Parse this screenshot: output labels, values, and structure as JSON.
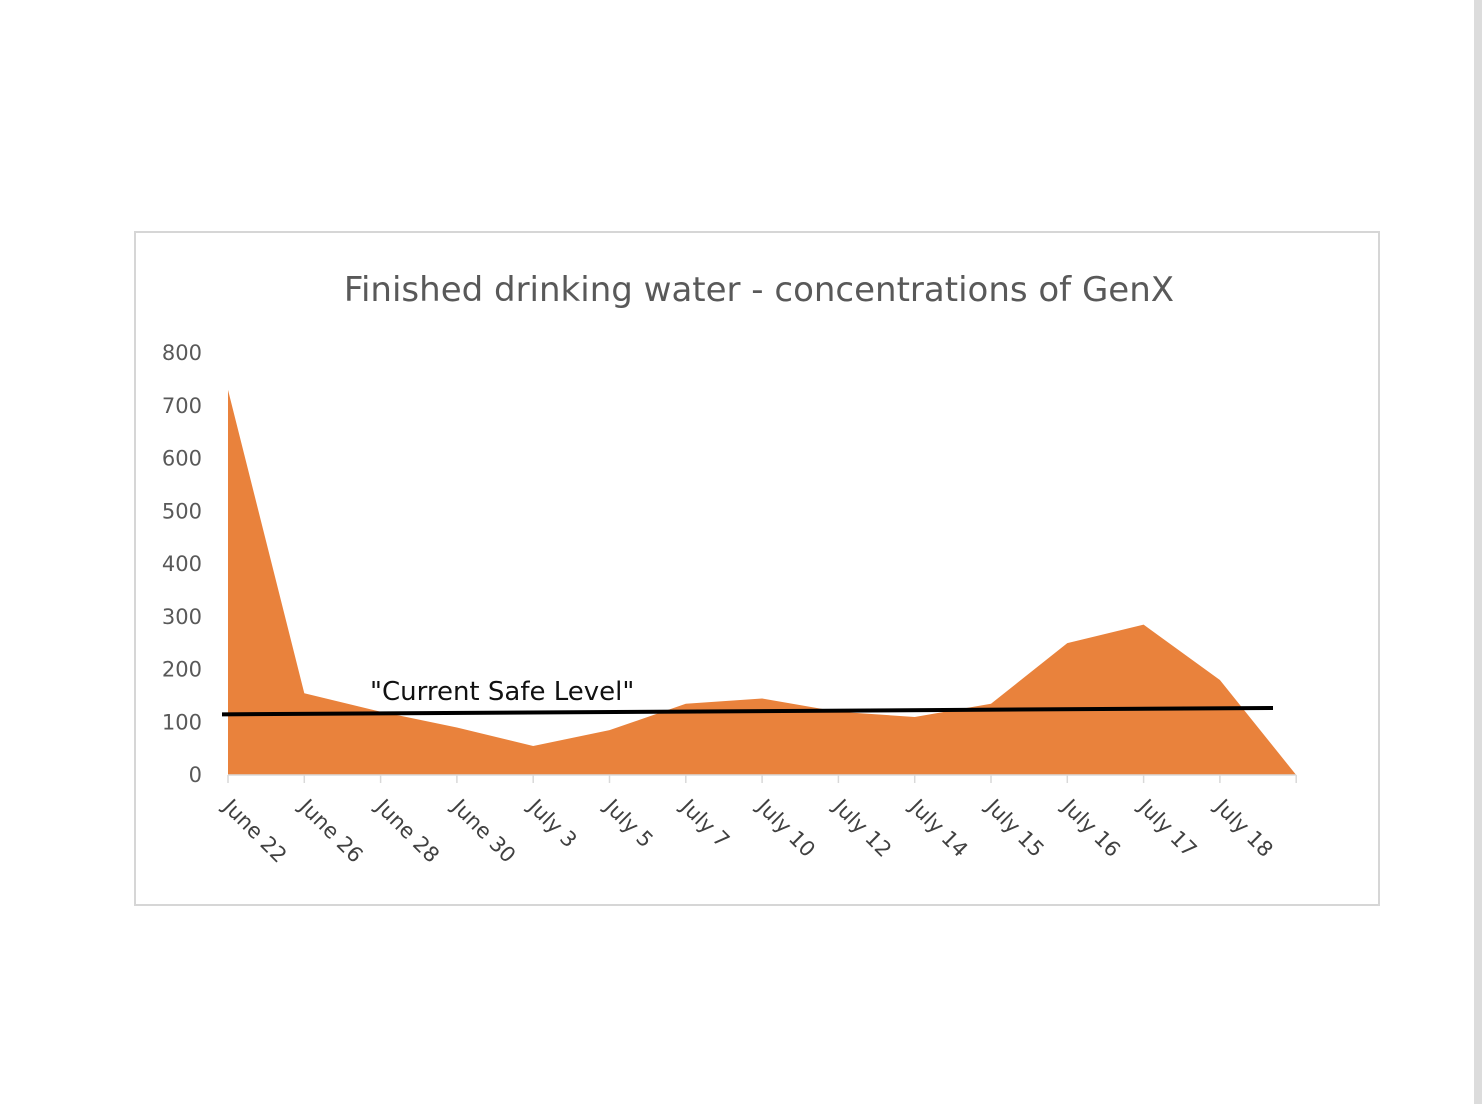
{
  "chart_data": {
    "type": "area",
    "title": "Finished drinking water - concentrations of GenX",
    "xlabel": "",
    "ylabel": "",
    "ylim": [
      0,
      800
    ],
    "yticks": [
      0,
      100,
      200,
      300,
      400,
      500,
      600,
      700,
      800
    ],
    "categories": [
      "June 22",
      "June 26",
      "June 28",
      "June 30",
      "July 3",
      "July 5",
      "July 7",
      "July 10",
      "July 12",
      "July 14",
      "July 15",
      "July 16",
      "July 17",
      "July 18",
      ""
    ],
    "series": [
      {
        "values": [
          730,
          155,
          120,
          90,
          55,
          85,
          135,
          145,
          120,
          110,
          135,
          250,
          285,
          180,
          0
        ],
        "color": "#E9823C"
      }
    ],
    "reference_line": {
      "label": "\"Current Safe Level\"",
      "y_start": 115,
      "y_end": 127,
      "color": "#000000"
    },
    "grid": false,
    "legend": "none"
  }
}
